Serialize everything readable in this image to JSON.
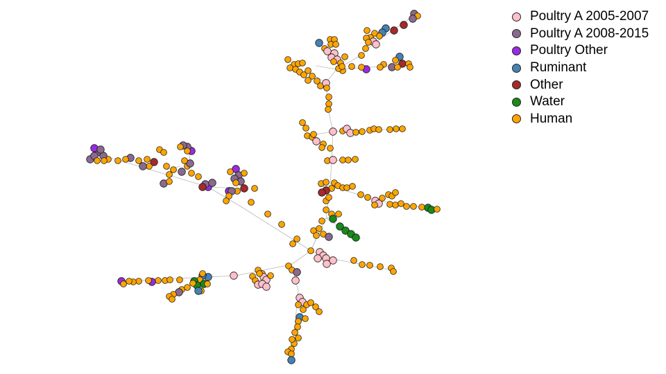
{
  "categories": [
    {
      "key": "pa0507",
      "label": "Poultry A 2005-2007",
      "color": "#ffc0cb"
    },
    {
      "key": "pa0815",
      "label": "Poultry A 2008-2015",
      "color": "#8b6a8f"
    },
    {
      "key": "po",
      "label": "Poultry Other",
      "color": "#9a2be2"
    },
    {
      "key": "ru",
      "label": "Ruminant",
      "color": "#4682b4"
    },
    {
      "key": "ot",
      "label": "Other",
      "color": "#a52a2a"
    },
    {
      "key": "wa",
      "label": "Water",
      "color": "#1a8a1a"
    },
    {
      "key": "hu",
      "label": "Human",
      "color": "#ffa500"
    }
  ]
}
